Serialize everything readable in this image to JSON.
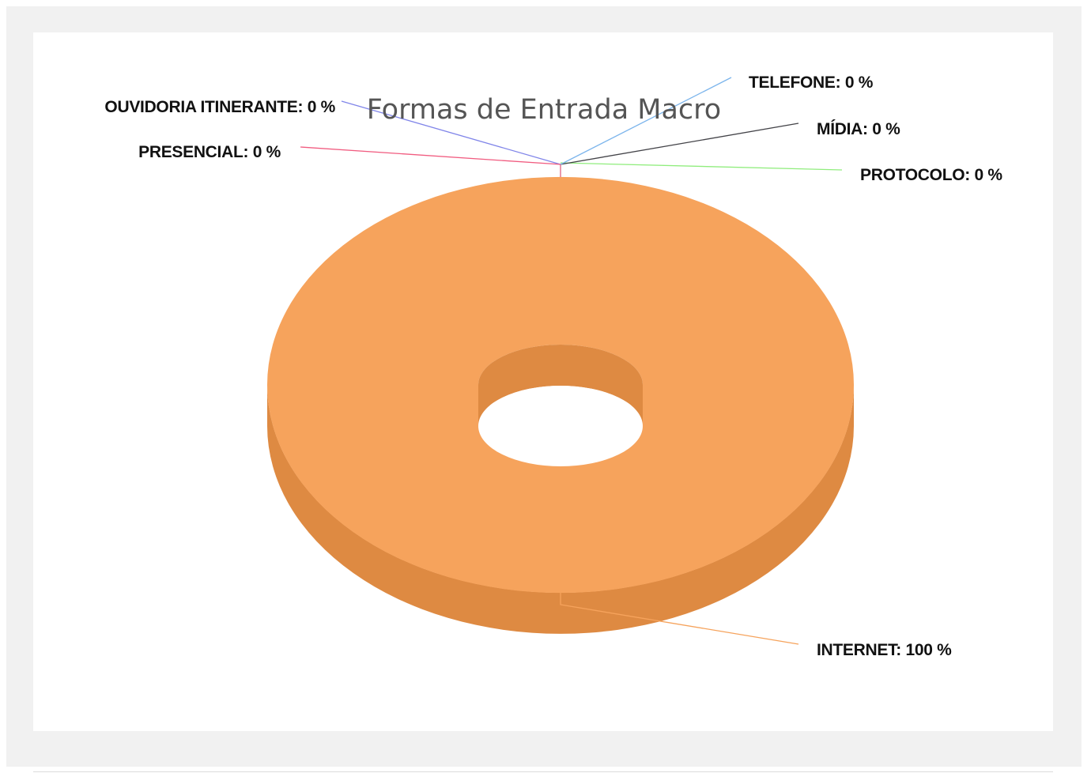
{
  "chart_data": {
    "type": "pie",
    "style": "3d-donut",
    "title": "Formas de Entrada Macro",
    "legend": "none",
    "slices": [
      {
        "name": "INTERNET",
        "value": 100,
        "label": "INTERNET: 100 %",
        "color": "#f6a35c",
        "side_color": "#de8a42"
      },
      {
        "name": "PROTOCOLO",
        "value": 0,
        "label": "PROTOCOLO: 0 %",
        "color": "#90ed7d"
      },
      {
        "name": "MÍDIA",
        "value": 0,
        "label": "MÍDIA: 0 %",
        "color": "#434348"
      },
      {
        "name": "TELEFONE",
        "value": 0,
        "label": "TELEFONE: 0 %",
        "color": "#7cb5ec"
      },
      {
        "name": "OUVIDORIA ITINERANTE",
        "value": 0,
        "label": "OUVIDORIA ITINERANTE: 0 %",
        "color": "#8085e9"
      },
      {
        "name": "PRESENCIAL",
        "value": 0,
        "label": "PRESENCIAL: 0 %",
        "color": "#f15c80"
      }
    ]
  }
}
